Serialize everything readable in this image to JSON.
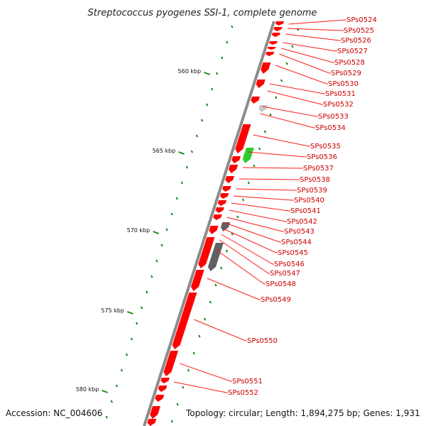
{
  "title": "Streptococcus pyogenes SSI-1, complete genome",
  "footer": {
    "accession": "Accession: NC_004606",
    "topology": "Topology: circular; Length: 1,894,275 bp; Genes: 1,931"
  },
  "colors": {
    "backbone": "#8c8c8c",
    "gene_forward": "#ff0000",
    "gene_other": "#616161",
    "gene_green": "#2ecc2e",
    "gene_light": "#c8c8c8",
    "tick": "#1a8a1a",
    "label": "#cc0000"
  },
  "kbp_labels": [
    "560 kbp",
    "565 kbp",
    "570 kbp",
    "575 kbp",
    "580 kbp"
  ],
  "genes": [
    {
      "name": "SPs0524"
    },
    {
      "name": "SPs0525"
    },
    {
      "name": "SPs0526"
    },
    {
      "name": "SPs0527"
    },
    {
      "name": "SPs0528"
    },
    {
      "name": "SPs0529"
    },
    {
      "name": "SPs0530"
    },
    {
      "name": "SPs0531"
    },
    {
      "name": "SPs0532"
    },
    {
      "name": "SPs0533"
    },
    {
      "name": "SPs0534"
    },
    {
      "name": "SPs0535"
    },
    {
      "name": "SPs0536"
    },
    {
      "name": "SPs0537"
    },
    {
      "name": "SPs0538"
    },
    {
      "name": "SPs0539"
    },
    {
      "name": "SPs0540"
    },
    {
      "name": "SPs0541"
    },
    {
      "name": "SPs0542"
    },
    {
      "name": "SPs0543"
    },
    {
      "name": "SPs0544"
    },
    {
      "name": "SPs0545"
    },
    {
      "name": "SPs0546"
    },
    {
      "name": "SPs0547"
    },
    {
      "name": "SPs0548"
    },
    {
      "name": "SPs0549"
    },
    {
      "name": "SPs0550"
    },
    {
      "name": "SPs0551"
    },
    {
      "name": "SPs0552"
    }
  ]
}
